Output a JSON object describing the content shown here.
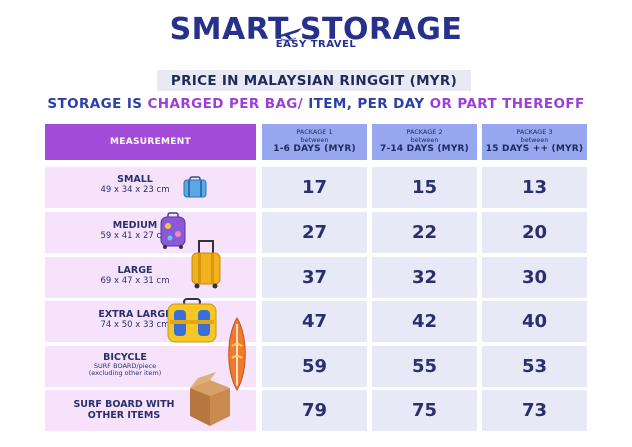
{
  "logo": {
    "word": "SMART STORAGE",
    "sub": "EASY TRAVEL"
  },
  "banner": "PRICE IN MALAYSIAN RINGGIT (MYR)",
  "tagline": {
    "part1": "STORAGE IS ",
    "part2": "CHARGED PER BAG/",
    "part3": " ITEM, PER DAY ",
    "part4": "OR",
    "part5": " PART THEREOFF"
  },
  "header": {
    "measurement": "MEASUREMENT",
    "packages": [
      {
        "name": "PACKAGE 1",
        "between": "between",
        "days": "1-6 DAYS (MYR)"
      },
      {
        "name": "PACKAGE 2",
        "between": "between",
        "days": "7-14 DAYS (MYR)"
      },
      {
        "name": "PACKAGE 3",
        "between": "between",
        "days": "15 DAYS ++  (MYR)"
      }
    ]
  },
  "rows": [
    {
      "name": "SMALL",
      "dims": "49 x 34 x 23 cm",
      "prices": [
        "17",
        "15",
        "13"
      ],
      "icon": "small-luggage-icon"
    },
    {
      "name": "MEDIUM",
      "dims": "59 x 41 x 27 cm",
      "prices": [
        "27",
        "22",
        "20"
      ],
      "icon": "medium-luggage-icon"
    },
    {
      "name": "LARGE",
      "dims": "69 x 47 x 31 cm",
      "prices": [
        "37",
        "32",
        "30"
      ],
      "icon": "large-luggage-icon"
    },
    {
      "name": "EXTRA LARGE",
      "dims": "74 x 50 x 33  cm",
      "prices": [
        "47",
        "42",
        "40"
      ],
      "icon": "extra-large-luggage-icon"
    },
    {
      "name": "BICYCLE",
      "line2": "SURF BOARD/piece",
      "line3": "(excluding other item)",
      "prices": [
        "59",
        "55",
        "53"
      ],
      "icon": "surfboard-icon"
    },
    {
      "name": "SURF BOARD WITH",
      "line2": "OTHER ITEMS",
      "prices": [
        "79",
        "75",
        "73"
      ],
      "icon": "cardboard-box-icon"
    }
  ]
}
